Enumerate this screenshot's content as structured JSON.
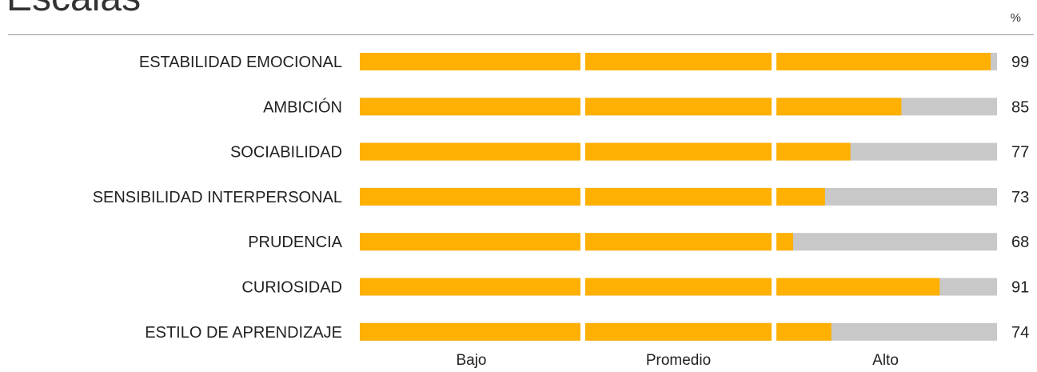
{
  "header": {
    "title": "Escalas",
    "unit": "%"
  },
  "colors": {
    "fill": "#FFB000",
    "track": "#C8C8C8",
    "separator": "#FFFFFF"
  },
  "chart_data": {
    "type": "bar",
    "orientation": "horizontal",
    "stacked_background": true,
    "unit": "%",
    "xlim": [
      0,
      100
    ],
    "categories": [
      "ESTABILIDAD EMOCIONAL",
      "AMBICIÓN",
      "SOCIABILIDAD",
      "SENSIBILIDAD INTERPERSONAL",
      "PRUDENCIA",
      "CURIOSIDAD",
      "ESTILO DE  APRENDIZAJE"
    ],
    "values": [
      99,
      85,
      77,
      73,
      68,
      91,
      74
    ],
    "bands": [
      {
        "label": "Bajo",
        "range": [
          0,
          35
        ]
      },
      {
        "label": "Promedio",
        "range": [
          35,
          65
        ]
      },
      {
        "label": "Alto",
        "range": [
          65,
          100
        ]
      }
    ],
    "grid": false,
    "legend": "none"
  }
}
